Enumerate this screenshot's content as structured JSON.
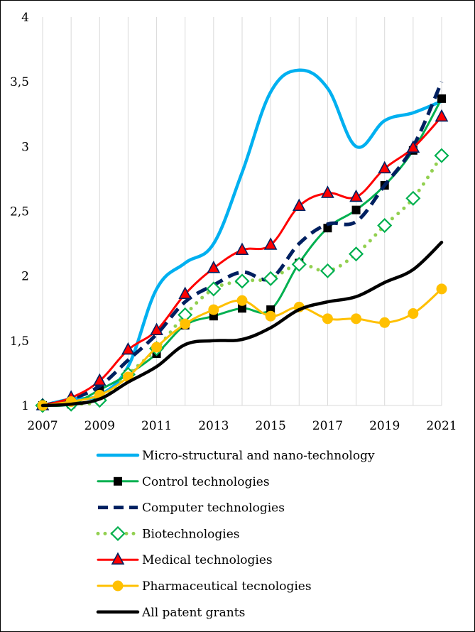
{
  "chart_data": {
    "type": "line",
    "x": [
      2007,
      2008,
      2009,
      2010,
      2011,
      2012,
      2013,
      2014,
      2015,
      2016,
      2017,
      2018,
      2019,
      2020,
      2021
    ],
    "xticks": [
      "2007",
      "2009",
      "2011",
      "2013",
      "2015",
      "2017",
      "2019",
      "2021"
    ],
    "yticks": [
      "1",
      "1,5",
      "2",
      "2,5",
      "3",
      "3,5",
      "4"
    ],
    "xlim": [
      2007,
      2021
    ],
    "ylim": [
      1,
      4
    ],
    "grid": "vertical",
    "legend_position": "bottom",
    "series": [
      {
        "name": "Micro-structural and nano-technology",
        "color": "#00b0f0",
        "style": "solid",
        "marker": "none",
        "values": [
          1.0,
          1.05,
          1.08,
          1.3,
          1.9,
          2.1,
          2.25,
          2.8,
          3.42,
          3.59,
          3.45,
          3.0,
          3.2,
          3.26,
          3.35
        ]
      },
      {
        "name": "Control technologies",
        "color": "#00b050",
        "style": "solid",
        "marker": "square",
        "values": [
          1.0,
          1.01,
          1.12,
          1.24,
          1.4,
          1.62,
          1.69,
          1.75,
          1.74,
          2.1,
          2.37,
          2.51,
          2.7,
          2.97,
          3.37
        ]
      },
      {
        "name": "Computer technologies",
        "color": "#002060",
        "style": "dashed",
        "marker": "none",
        "values": [
          1.0,
          1.05,
          1.15,
          1.35,
          1.55,
          1.8,
          1.93,
          2.03,
          1.98,
          2.25,
          2.4,
          2.42,
          2.7,
          3.0,
          3.5
        ]
      },
      {
        "name": "Biotechnologies",
        "color": "#92d050",
        "style": "dotted",
        "marker": "diamond",
        "values": [
          1.0,
          1.01,
          1.04,
          1.24,
          1.44,
          1.7,
          1.9,
          1.96,
          1.98,
          2.09,
          2.04,
          2.17,
          2.39,
          2.6,
          2.93
        ]
      },
      {
        "name": "Medical technologies",
        "color": "#ff0000",
        "style": "solid",
        "marker": "triangle",
        "values": [
          1.0,
          1.06,
          1.19,
          1.43,
          1.58,
          1.86,
          2.06,
          2.2,
          2.24,
          2.54,
          2.64,
          2.61,
          2.83,
          2.99,
          3.23
        ]
      },
      {
        "name": "Pharmaceutical tecnologies",
        "color": "#ffc000",
        "style": "solid",
        "marker": "circle",
        "values": [
          1.0,
          1.03,
          1.08,
          1.22,
          1.45,
          1.63,
          1.74,
          1.81,
          1.69,
          1.76,
          1.67,
          1.67,
          1.64,
          1.71,
          1.9
        ]
      },
      {
        "name": "All patent grants",
        "color": "#000000",
        "style": "solid",
        "marker": "none",
        "values": [
          1.0,
          1.01,
          1.05,
          1.18,
          1.3,
          1.47,
          1.5,
          1.51,
          1.6,
          1.74,
          1.8,
          1.84,
          1.95,
          2.05,
          2.26
        ]
      }
    ]
  }
}
